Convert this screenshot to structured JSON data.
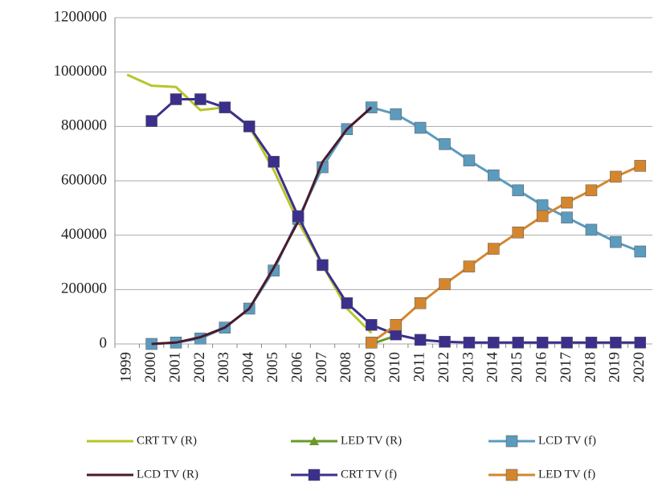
{
  "chart_data": {
    "type": "line",
    "categories": [
      "1999",
      "2000",
      "2001",
      "2002",
      "2003",
      "2004",
      "2005",
      "2006",
      "2007",
      "2008",
      "2009",
      "2010",
      "2011",
      "2012",
      "2013",
      "2014",
      "2015",
      "2016",
      "2017",
      "2018",
      "2019",
      "2020"
    ],
    "ylim": [
      0,
      1200000
    ],
    "yticks": [
      0,
      200000,
      400000,
      600000,
      800000,
      1000000,
      1200000
    ],
    "grid": true,
    "legend": "bottom",
    "series": [
      {
        "name": "CRT TV (R)",
        "color": "#b8c52a",
        "marker": "none",
        "values": [
          990000,
          950000,
          945000,
          860000,
          870000,
          800000,
          640000,
          450000,
          290000,
          130000,
          40000,
          null,
          null,
          null,
          null,
          null,
          null,
          null,
          null,
          null,
          null,
          null
        ]
      },
      {
        "name": "LED TV (R)",
        "color": "#6a9a2a",
        "marker": "triangle",
        "values": [
          null,
          null,
          null,
          null,
          null,
          null,
          null,
          null,
          null,
          null,
          0,
          30000,
          null,
          null,
          null,
          null,
          null,
          null,
          null,
          null,
          null,
          null
        ]
      },
      {
        "name": "LCD TV (f)",
        "color": "#5b9bbd",
        "marker": "square",
        "values": [
          null,
          0,
          5000,
          20000,
          60000,
          130000,
          270000,
          460000,
          650000,
          790000,
          870000,
          845000,
          795000,
          735000,
          675000,
          620000,
          565000,
          510000,
          465000,
          420000,
          375000,
          340000
        ]
      },
      {
        "name": "LCD TV (R)",
        "color": "#4a1a2c",
        "marker": "none",
        "values": [
          null,
          0,
          5000,
          25000,
          60000,
          130000,
          280000,
          450000,
          670000,
          790000,
          870000,
          null,
          null,
          null,
          null,
          null,
          null,
          null,
          null,
          null,
          null,
          null
        ]
      },
      {
        "name": "CRT TV (f)",
        "color": "#3b2f8c",
        "marker": "square",
        "values": [
          null,
          820000,
          900000,
          900000,
          870000,
          800000,
          670000,
          470000,
          290000,
          150000,
          70000,
          35000,
          15000,
          8000,
          5000,
          5000,
          5000,
          5000,
          5000,
          5000,
          5000,
          5000
        ]
      },
      {
        "name": "LED TV (f)",
        "color": "#d4862e",
        "marker": "square",
        "values": [
          null,
          null,
          null,
          null,
          null,
          null,
          null,
          null,
          null,
          null,
          5000,
          70000,
          150000,
          220000,
          285000,
          350000,
          410000,
          470000,
          520000,
          565000,
          615000,
          655000
        ]
      }
    ]
  }
}
